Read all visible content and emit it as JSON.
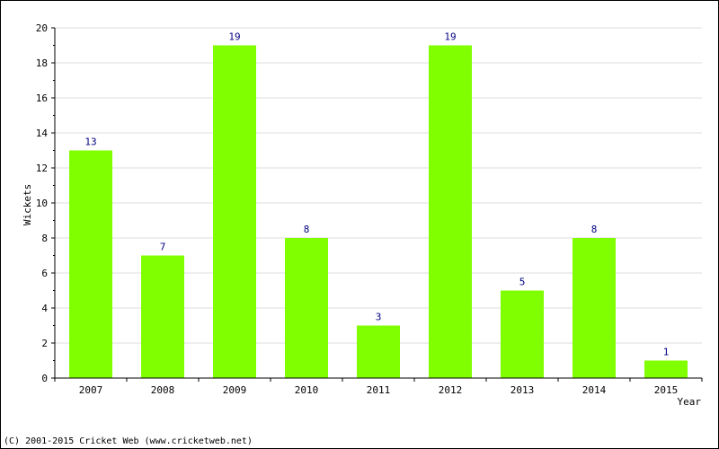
{
  "chart_data": {
    "type": "bar",
    "categories": [
      "2007",
      "2008",
      "2009",
      "2010",
      "2011",
      "2012",
      "2013",
      "2014",
      "2015"
    ],
    "values": [
      13,
      7,
      19,
      8,
      3,
      19,
      5,
      8,
      1
    ],
    "title": "",
    "xlabel": "Year",
    "ylabel": "Wickets",
    "ylim": [
      0,
      20
    ],
    "yticks": [
      0,
      2,
      4,
      6,
      8,
      10,
      12,
      14,
      16,
      18,
      20
    ],
    "grid": true,
    "data_labels": true,
    "bar_color": "#80ff00",
    "label_color": "#000080",
    "grid_color": "#dddddd"
  },
  "footer": {
    "copyright": "(C) 2001-2015 Cricket Web (www.cricketweb.net)"
  }
}
